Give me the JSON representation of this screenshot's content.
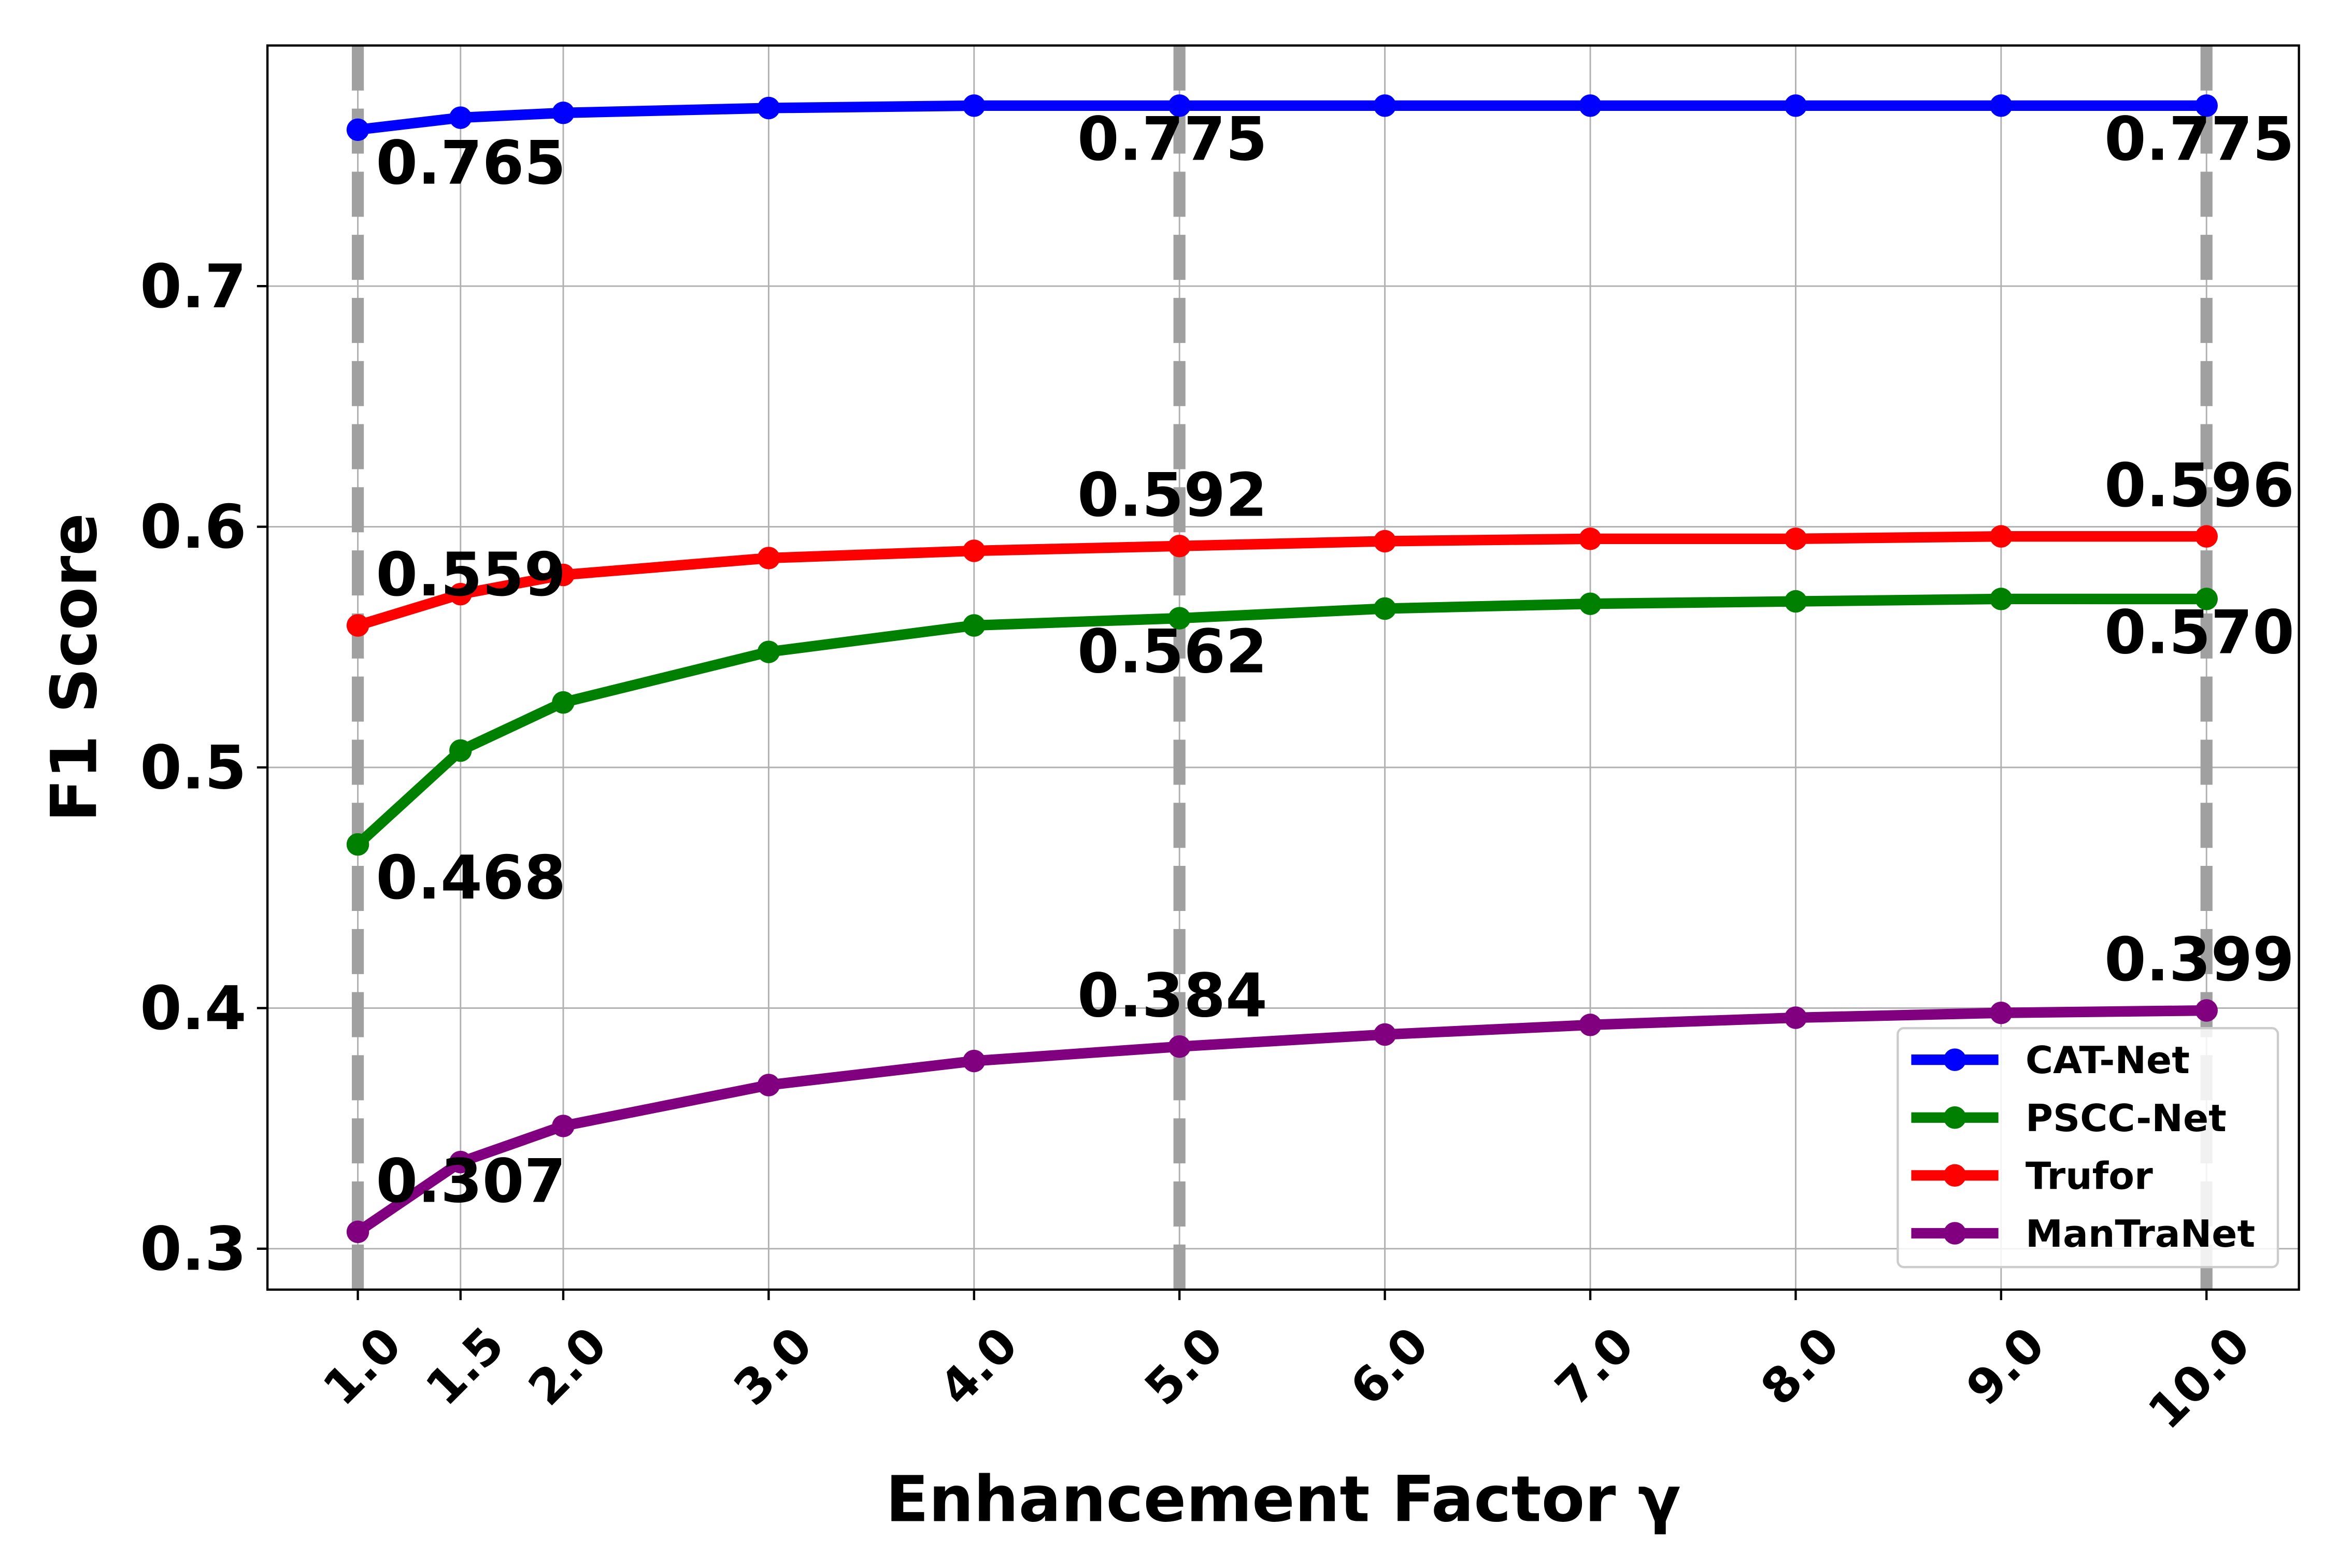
{
  "chart_data": {
    "type": "line",
    "title": "",
    "xlabel": "Enhancement Factor γ",
    "ylabel": "F1 Score",
    "xlim": [
      0.56,
      10.45
    ],
    "ylim": [
      0.283,
      0.8
    ],
    "grid": true,
    "x": [
      1.0,
      1.5,
      2.0,
      3.0,
      4.0,
      5.0,
      6.0,
      7.0,
      8.0,
      9.0,
      10.0
    ],
    "x_tick_labels": [
      "1.0",
      "1.5",
      "2.0",
      "3.0",
      "4.0",
      "5.0",
      "6.0",
      "7.0",
      "8.0",
      "9.0",
      "10.0"
    ],
    "y_ticks": [
      0.3,
      0.4,
      0.5,
      0.6,
      0.7
    ],
    "y_tick_labels": [
      "0.3",
      "0.4",
      "0.5",
      "0.6",
      "0.7"
    ],
    "reference_lines_x": [
      1.0,
      5.0,
      10.0
    ],
    "reference_line_color": "#a0a0a0",
    "legend_position": "lower-right",
    "series": [
      {
        "name": "CAT-Net",
        "color": "#0000ff",
        "values": [
          0.765,
          0.77,
          0.772,
          0.774,
          0.775,
          0.775,
          0.775,
          0.775,
          0.775,
          0.775,
          0.775
        ]
      },
      {
        "name": "PSCC-Net",
        "color": "#008000",
        "values": [
          0.468,
          0.507,
          0.527,
          0.548,
          0.559,
          0.562,
          0.566,
          0.568,
          0.569,
          0.57,
          0.57
        ]
      },
      {
        "name": "Trufor",
        "color": "#ff0000",
        "values": [
          0.559,
          0.572,
          0.58,
          0.587,
          0.59,
          0.592,
          0.594,
          0.595,
          0.595,
          0.596,
          0.596
        ]
      },
      {
        "name": "ManTraNet",
        "color": "#800080",
        "values": [
          0.307,
          0.336,
          0.351,
          0.368,
          0.378,
          0.384,
          0.389,
          0.393,
          0.396,
          0.398,
          0.399
        ]
      }
    ],
    "annotations": [
      {
        "text": "0.765",
        "x": 1.0,
        "y": 0.765,
        "side": "below"
      },
      {
        "text": "0.775",
        "x": 5.0,
        "y": 0.775,
        "side": "below"
      },
      {
        "text": "0.775",
        "x": 10.0,
        "y": 0.775,
        "side": "below"
      },
      {
        "text": "0.559",
        "x": 1.0,
        "y": 0.559,
        "side": "above"
      },
      {
        "text": "0.592",
        "x": 5.0,
        "y": 0.592,
        "side": "above"
      },
      {
        "text": "0.596",
        "x": 10.0,
        "y": 0.596,
        "side": "above"
      },
      {
        "text": "0.468",
        "x": 1.0,
        "y": 0.468,
        "side": "below"
      },
      {
        "text": "0.562",
        "x": 5.0,
        "y": 0.562,
        "side": "below"
      },
      {
        "text": "0.570",
        "x": 10.0,
        "y": 0.57,
        "side": "below"
      },
      {
        "text": "0.307",
        "x": 1.0,
        "y": 0.307,
        "side": "above"
      },
      {
        "text": "0.384",
        "x": 5.0,
        "y": 0.384,
        "side": "above"
      },
      {
        "text": "0.399",
        "x": 10.0,
        "y": 0.399,
        "side": "above"
      }
    ]
  }
}
